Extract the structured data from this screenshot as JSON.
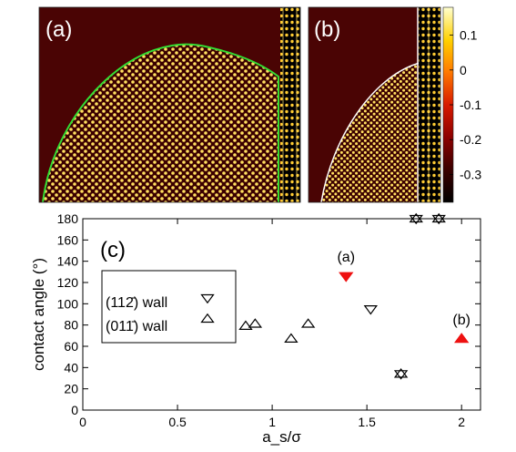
{
  "panels": {
    "a_label": "(a)",
    "b_label": "(b)",
    "colorbar_ticks": [
      "0.1",
      "0",
      "-0.1",
      "-0.2",
      "-0.3"
    ],
    "colorbar_values": [
      0.1,
      0,
      -0.1,
      -0.2,
      -0.3
    ],
    "colorbar_range": [
      -0.38,
      0.18
    ],
    "colormap": [
      "#000000",
      "#3b0000",
      "#8b0000",
      "#d81a00",
      "#ff7a00",
      "#ffd000",
      "#ffffd0"
    ],
    "background_color": "#4a0404",
    "contour_color_a": "#33dd33",
    "contour_color_b": "#ffffff"
  },
  "chart_data": {
    "type": "scatter",
    "panel_label": "(c)",
    "xlabel": "a_s/σ",
    "ylabel": "contact angle (°)",
    "xlim": [
      0,
      2.1
    ],
    "ylim": [
      0,
      180
    ],
    "xticks": [
      0,
      0.5,
      1,
      1.5,
      2
    ],
    "xtick_labels": [
      "0",
      "0.5",
      "1",
      "1.5",
      "2"
    ],
    "yticks": [
      0,
      20,
      40,
      60,
      80,
      100,
      120,
      140,
      160,
      180
    ],
    "ytick_labels": [
      "0",
      "20",
      "40",
      "60",
      "80",
      "100",
      "120",
      "140",
      "160",
      "180"
    ],
    "legend_position": "left",
    "series": [
      {
        "name": "(112̄) wall",
        "marker": "triangle-down",
        "x": [
          1.52,
          1.68,
          1.76,
          1.88
        ],
        "y": [
          95,
          34,
          180,
          180
        ]
      },
      {
        "name": "(011̄) wall",
        "marker": "triangle-up",
        "x": [
          0.86,
          0.91,
          1.1,
          1.19,
          1.68,
          1.76,
          1.88
        ],
        "y": [
          79,
          81,
          67,
          81,
          34,
          180,
          180
        ]
      }
    ],
    "highlighted": [
      {
        "label": "(a)",
        "marker": "triangle-down",
        "x": 1.39,
        "y": 126,
        "color": "#ee1111"
      },
      {
        "label": "(b)",
        "marker": "triangle-up",
        "x": 2.0,
        "y": 67,
        "color": "#ee1111"
      }
    ]
  }
}
